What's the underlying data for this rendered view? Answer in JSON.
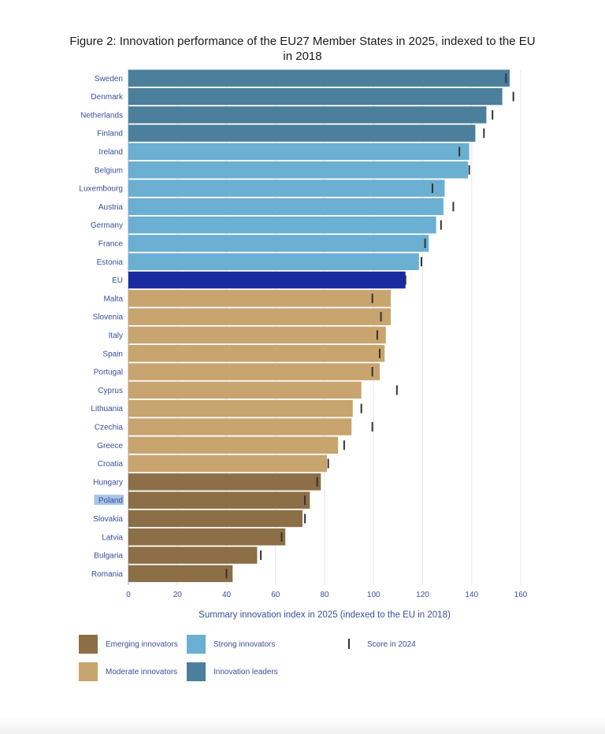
{
  "chart_data": {
    "type": "bar",
    "orientation": "horizontal",
    "title": "Figure 2: Innovation performance of the EU27 Member States in 2025, indexed to the EU in 2018",
    "xlabel": "Summary innovation index in 2025 (indexed to the EU in 2018)",
    "ylabel": "",
    "xlim": [
      0,
      160
    ],
    "xticks": [
      0,
      20,
      40,
      60,
      80,
      100,
      120,
      140,
      160
    ],
    "grid": true,
    "legend_position": "bottom",
    "categories": [
      "Sweden",
      "Denmark",
      "Netherlands",
      "Finland",
      "Ireland",
      "Belgium",
      "Luxembourg",
      "Austria",
      "Germany",
      "France",
      "Estonia",
      "EU",
      "Malta",
      "Slovenia",
      "Italy",
      "Spain",
      "Portugal",
      "Cyprus",
      "Lithuania",
      "Czechia",
      "Greece",
      "Croatia",
      "Hungary",
      "Poland",
      "Slovakia",
      "Latvia",
      "Bulgaria",
      "Romania"
    ],
    "values_2025": [
      155.5,
      152.5,
      146,
      141.5,
      139,
      138.5,
      129,
      128.5,
      125.5,
      122.5,
      118.5,
      113,
      107,
      107,
      105,
      104.5,
      102.5,
      95,
      91.5,
      91,
      85.5,
      81,
      78.5,
      74,
      71,
      64,
      52.5,
      42.5
    ],
    "scores_2024": [
      154,
      157,
      148.5,
      145,
      135,
      139,
      124,
      132.5,
      127.5,
      121,
      119.5,
      113,
      99.5,
      103,
      101.5,
      102.5,
      99.5,
      109.5,
      95,
      99.5,
      88,
      81.5,
      77,
      72,
      72,
      62.5,
      54,
      40
    ],
    "groups": [
      "Innovation leaders",
      "Innovation leaders",
      "Innovation leaders",
      "Innovation leaders",
      "Strong innovators",
      "Strong innovators",
      "Strong innovators",
      "Strong innovators",
      "Strong innovators",
      "Strong innovators",
      "Strong innovators",
      "EU",
      "Moderate innovators",
      "Moderate innovators",
      "Moderate innovators",
      "Moderate innovators",
      "Moderate innovators",
      "Moderate innovators",
      "Moderate innovators",
      "Moderate innovators",
      "Moderate innovators",
      "Moderate innovators",
      "Emerging innovators",
      "Emerging innovators",
      "Emerging innovators",
      "Emerging innovators",
      "Emerging innovators",
      "Emerging innovators"
    ],
    "group_colors": {
      "Innovation leaders": "#4c7f9c",
      "Strong innovators": "#6bafd2",
      "EU": "#1a2aa0",
      "Moderate innovators": "#c8a46e",
      "Emerging innovators": "#8c6f47"
    },
    "legend": [
      {
        "label": "Emerging innovators",
        "kind": "swatch",
        "color": "#8c6f47"
      },
      {
        "label": "Strong innovators",
        "kind": "swatch",
        "color": "#6bafd2"
      },
      {
        "label": "Score in 2024",
        "kind": "marker",
        "color": "#333333"
      },
      {
        "label": "Moderate innovators",
        "kind": "swatch",
        "color": "#c8a46e"
      },
      {
        "label": "Innovation leaders",
        "kind": "swatch",
        "color": "#4c7f9c"
      }
    ],
    "highlighted_label": "Poland",
    "highlight_color": "#a9c5e8"
  }
}
